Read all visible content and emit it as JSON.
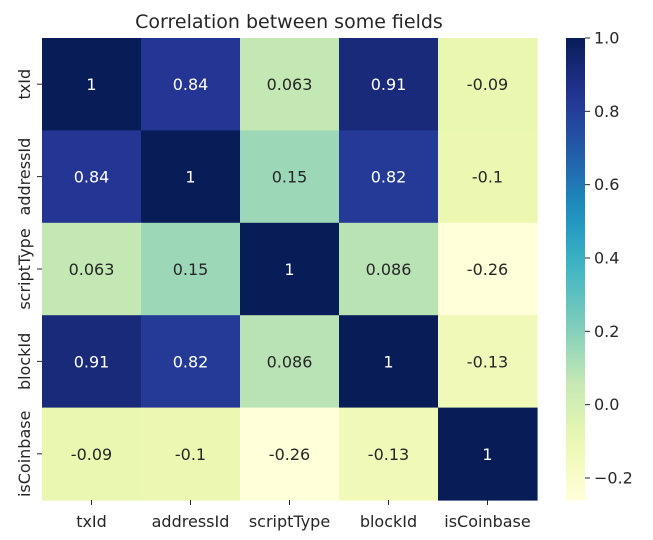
{
  "chart_data": {
    "type": "heatmap",
    "title": "Correlation between some fields",
    "rows": [
      "txId",
      "addressId",
      "scriptType",
      "blockId",
      "isCoinbase"
    ],
    "columns": [
      "txId",
      "addressId",
      "scriptType",
      "blockId",
      "isCoinbase"
    ],
    "values": [
      [
        1,
        0.84,
        0.063,
        0.91,
        -0.09
      ],
      [
        0.84,
        1,
        0.15,
        0.82,
        -0.1
      ],
      [
        0.063,
        0.15,
        1,
        0.086,
        -0.26
      ],
      [
        0.91,
        0.82,
        0.086,
        1,
        -0.13
      ],
      [
        -0.09,
        -0.1,
        -0.26,
        -0.13,
        1
      ]
    ],
    "cell_labels": [
      [
        "1",
        "0.84",
        "0.063",
        "0.91",
        "-0.09"
      ],
      [
        "0.84",
        "1",
        "0.15",
        "0.82",
        "-0.1"
      ],
      [
        "0.063",
        "0.15",
        "1",
        "0.086",
        "-0.26"
      ],
      [
        "0.91",
        "0.82",
        "0.086",
        "1",
        "-0.13"
      ],
      [
        "-0.09",
        "-0.1",
        "-0.26",
        "-0.13",
        "1"
      ]
    ],
    "colormap": "YlGnBu",
    "color_range": [
      -0.26,
      1
    ],
    "colorbar_ticks": [
      1.0,
      0.8,
      0.6,
      0.4,
      0.2,
      0.0,
      -0.2
    ],
    "colorbar_tick_labels": [
      "1.0",
      "0.8",
      "0.6",
      "0.4",
      "0.2",
      "0.0",
      "−0.2"
    ]
  }
}
